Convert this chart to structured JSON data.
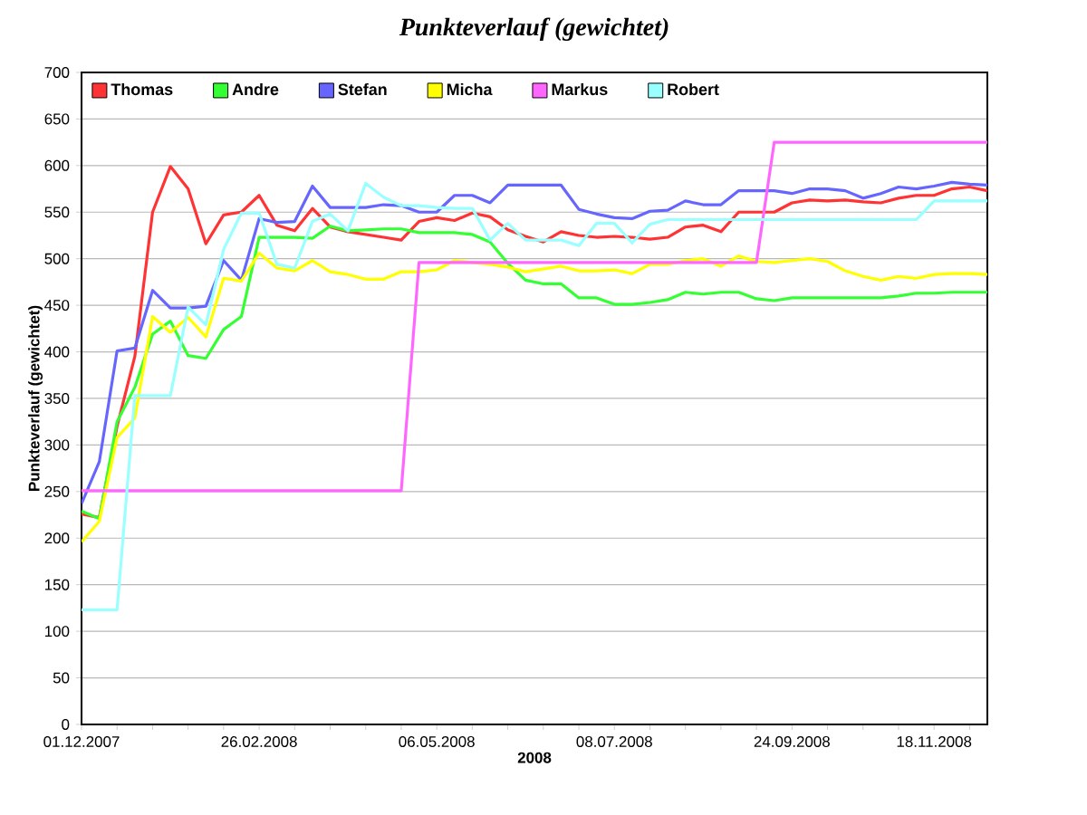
{
  "chart_data": {
    "type": "line",
    "title": "Punkteverlauf (gewichtet)",
    "xlabel": "2008",
    "ylabel": "Punkteverlauf (gewichtet)",
    "categories": [
      "01.12.2007",
      null,
      null,
      null,
      null,
      null,
      null,
      null,
      null,
      null,
      "26.02.2008",
      null,
      null,
      null,
      null,
      null,
      null,
      null,
      null,
      null,
      "06.05.2008",
      null,
      null,
      null,
      null,
      null,
      null,
      null,
      null,
      null,
      "08.07.2008",
      null,
      null,
      null,
      null,
      null,
      null,
      null,
      null,
      null,
      "24.09.2008",
      null,
      null,
      null,
      null,
      null,
      null,
      null,
      "18.11.2008",
      null,
      null,
      null
    ],
    "ylim": [
      0,
      700
    ],
    "yticks": [
      0,
      50,
      100,
      150,
      200,
      250,
      300,
      350,
      400,
      450,
      500,
      550,
      600,
      650,
      700
    ],
    "grid": "y",
    "legend": "top left",
    "marker": "none",
    "line_style": "solid",
    "series": [
      {
        "name": "Thomas",
        "color": "#ff3333",
        "values": [
          226,
          222,
          320,
          395,
          550,
          599,
          575,
          516,
          547,
          550,
          568,
          536,
          530,
          554,
          534,
          529,
          526,
          523,
          520,
          540,
          544,
          541,
          549,
          545,
          531,
          524,
          518,
          529,
          525,
          523,
          524,
          523,
          521,
          523,
          534,
          536,
          529,
          550,
          550,
          550,
          560,
          563,
          562,
          563,
          561,
          560,
          565,
          568,
          568,
          575,
          577,
          573
        ]
      },
      {
        "name": "Andre",
        "color": "#33ff33",
        "values": [
          229,
          221,
          325,
          362,
          419,
          433,
          396,
          393,
          424,
          438,
          523,
          523,
          523,
          522,
          535,
          530,
          531,
          532,
          532,
          528,
          528,
          528,
          526,
          518,
          495,
          477,
          473,
          473,
          458,
          458,
          451,
          451,
          453,
          456,
          464,
          462,
          464,
          464,
          457,
          455,
          458,
          458,
          458,
          458,
          458,
          458,
          460,
          463,
          463,
          464,
          464,
          464
        ]
      },
      {
        "name": "Stefan",
        "color": "#6666ff",
        "values": [
          237,
          282,
          401,
          404,
          466,
          447,
          447,
          449,
          498,
          477,
          543,
          539,
          540,
          578,
          555,
          555,
          555,
          558,
          557,
          550,
          550,
          568,
          568,
          560,
          579,
          579,
          579,
          579,
          553,
          548,
          544,
          543,
          551,
          552,
          562,
          558,
          558,
          573,
          573,
          573,
          570,
          575,
          575,
          573,
          565,
          570,
          577,
          575,
          578,
          582,
          580,
          579
        ]
      },
      {
        "name": "Micha",
        "color": "#ffff00",
        "values": [
          196,
          218,
          308,
          329,
          438,
          421,
          437,
          416,
          479,
          476,
          506,
          490,
          487,
          498,
          486,
          483,
          478,
          478,
          486,
          486,
          488,
          498,
          496,
          494,
          491,
          486,
          489,
          492,
          487,
          487,
          488,
          484,
          494,
          494,
          498,
          500,
          492,
          503,
          497,
          496,
          498,
          500,
          497,
          487,
          481,
          477,
          481,
          479,
          483,
          484,
          484,
          483
        ]
      },
      {
        "name": "Markus",
        "color": "#ff66ff",
        "values": [
          251,
          251,
          251,
          251,
          251,
          251,
          251,
          251,
          251,
          251,
          251,
          251,
          251,
          251,
          251,
          251,
          251,
          251,
          251,
          496,
          496,
          496,
          496,
          496,
          496,
          496,
          496,
          496,
          496,
          496,
          496,
          496,
          496,
          496,
          496,
          496,
          496,
          496,
          496,
          625,
          625,
          625,
          625,
          625,
          625,
          625,
          625,
          625,
          625,
          625,
          625,
          625
        ]
      },
      {
        "name": "Robert",
        "color": "#99ffff",
        "values": [
          123,
          123,
          123,
          353,
          353,
          353,
          448,
          429,
          510,
          549,
          549,
          494,
          490,
          540,
          548,
          530,
          581,
          566,
          557,
          557,
          555,
          554,
          554,
          520,
          538,
          520,
          520,
          520,
          514,
          538,
          538,
          517,
          537,
          542,
          542,
          542,
          542,
          542,
          542,
          542,
          542,
          542,
          542,
          542,
          542,
          542,
          542,
          542,
          562,
          562,
          562,
          562
        ]
      }
    ]
  }
}
